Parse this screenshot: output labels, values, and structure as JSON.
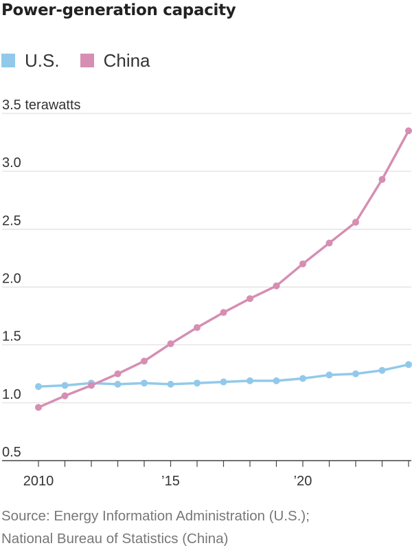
{
  "chart_data": {
    "type": "line",
    "title": "Power-generation capacity",
    "unit_label": "3.5 terawatts",
    "x": [
      2010,
      2011,
      2012,
      2013,
      2014,
      2015,
      2016,
      2017,
      2018,
      2019,
      2020,
      2021,
      2022,
      2023,
      2024
    ],
    "x_tick_values": [
      2010,
      2015,
      2020
    ],
    "x_tick_labels": [
      "2010",
      "’15",
      "’20"
    ],
    "y_ticks": [
      {
        "value": 0.5,
        "label": "0.5"
      },
      {
        "value": 1.0,
        "label": "1.0"
      },
      {
        "value": 1.5,
        "label": "1.5"
      },
      {
        "value": 2.0,
        "label": "2.0"
      },
      {
        "value": 2.5,
        "label": "2.5"
      },
      {
        "value": 3.0,
        "label": "3.0"
      },
      {
        "value": 3.5,
        "label": "3.5 terawatts"
      }
    ],
    "ylim": [
      0.5,
      3.5
    ],
    "xlim": [
      2010,
      2024
    ],
    "grid": true,
    "legend_position": "top-left",
    "series": [
      {
        "name": "U.S.",
        "color": "#92c9ea",
        "values": [
          1.14,
          1.15,
          1.17,
          1.16,
          1.17,
          1.16,
          1.17,
          1.18,
          1.19,
          1.19,
          1.21,
          1.24,
          1.25,
          1.28,
          1.33
        ]
      },
      {
        "name": "China",
        "color": "#d68eb3",
        "values": [
          0.96,
          1.06,
          1.15,
          1.25,
          1.36,
          1.51,
          1.65,
          1.78,
          1.9,
          2.01,
          2.2,
          2.38,
          2.56,
          2.93,
          3.35
        ]
      }
    ]
  },
  "source": {
    "line1": "Source: Energy Information Administration (U.S.);",
    "line2": "National Bureau of Statistics (China)"
  }
}
